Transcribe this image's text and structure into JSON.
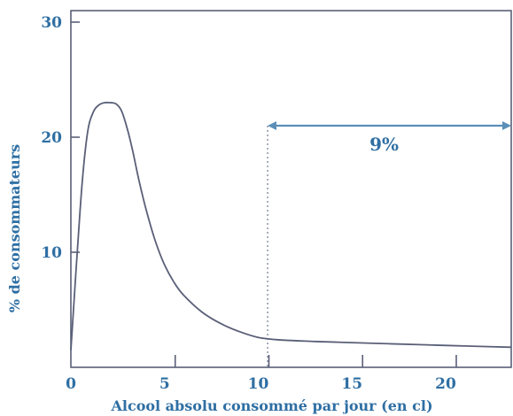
{
  "chart_data": {
    "type": "line",
    "title": "",
    "xlabel": "Alcool absolu consommé par jour (en cl)",
    "ylabel": "% de consommateurs",
    "xlim": [
      0,
      23.5
    ],
    "ylim": [
      0,
      31
    ],
    "x_ticks": [
      "0",
      "5",
      "10",
      "15",
      "20"
    ],
    "y_ticks": [
      "10",
      "20",
      "30"
    ],
    "grid": false,
    "series": [
      {
        "x": [
          0,
          0.3,
          0.6,
          0.9,
          1.2,
          1.5,
          1.8,
          2.1,
          2.4,
          2.7,
          3.0,
          3.3,
          3.6,
          4.0,
          4.5,
          5.0,
          5.5,
          6.0,
          7.0,
          8.0,
          9.0,
          10.0,
          11.0,
          13.0,
          15.0,
          17.0,
          19.0,
          21.0,
          23.5
        ],
        "y": [
          1.5,
          9.0,
          16.0,
          20.5,
          22.2,
          22.8,
          23.0,
          23.0,
          22.9,
          22.3,
          20.8,
          18.8,
          16.5,
          13.8,
          11.0,
          8.9,
          7.4,
          6.3,
          4.8,
          3.8,
          3.1,
          2.6,
          2.4,
          2.25,
          2.15,
          2.05,
          1.95,
          1.85,
          1.75
        ]
      }
    ],
    "annotations": [
      {
        "type": "vertical_dotted_line",
        "x": 10.5
      },
      {
        "type": "double_arrow",
        "x_from": 10.5,
        "x_to": 23.5,
        "y": 21,
        "label": "9%"
      }
    ],
    "colors": {
      "curve": "#5a5f78",
      "axis": "#5a5f78",
      "text": "#2f6fa3"
    }
  }
}
